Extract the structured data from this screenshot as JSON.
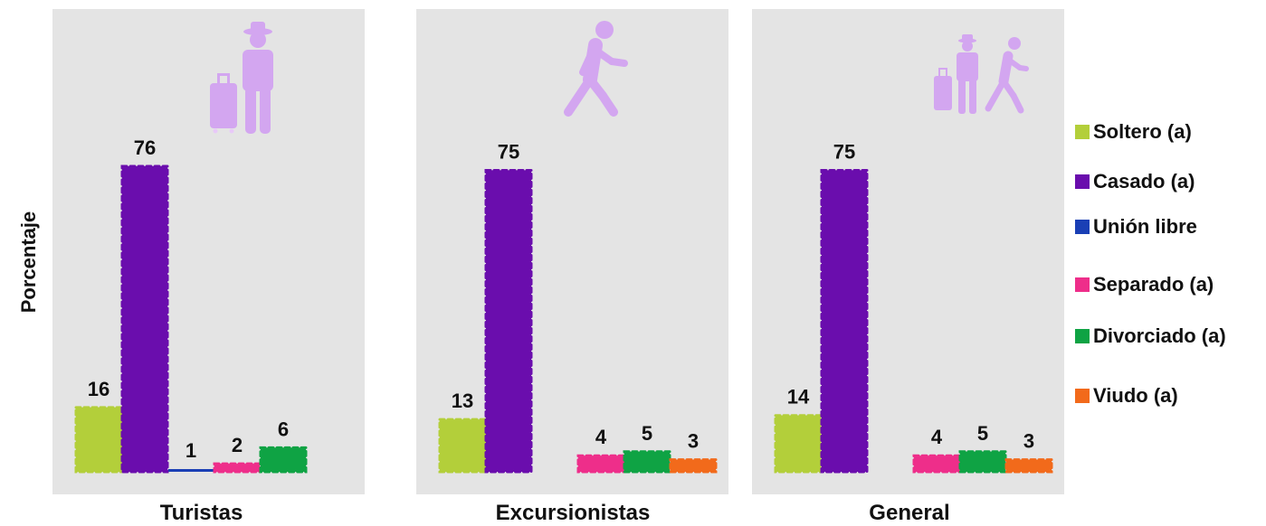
{
  "chart_data": {
    "type": "bar",
    "ylabel": "Porcentaje",
    "ylim": [
      0,
      80
    ],
    "series": [
      {
        "name": "Soltero (a)",
        "color": "#b3cf3a"
      },
      {
        "name": "Casado (a)",
        "color": "#6a0dad"
      },
      {
        "name": "Unión libre",
        "color": "#1a3fb5"
      },
      {
        "name": "Separado (a)",
        "color": "#ee2e8a"
      },
      {
        "name": "Divorciado (a)",
        "color": "#0fa344"
      },
      {
        "name": "Viudo (a)",
        "color": "#f26a1b"
      }
    ],
    "groups": [
      {
        "category": "Turistas",
        "icon": "tourist-luggage-icon",
        "values": [
          16,
          76,
          1,
          2,
          6,
          null
        ],
        "labels": [
          "16",
          "76",
          "1",
          "2",
          "6",
          ""
        ]
      },
      {
        "category": "Excursionistas",
        "icon": "walking-person-icon",
        "values": [
          13,
          75,
          null,
          4,
          5,
          3
        ],
        "labels": [
          "13",
          "75",
          "",
          "4",
          "5",
          "3"
        ]
      },
      {
        "category": "General",
        "icon": "tourist-and-walker-icon",
        "values": [
          14,
          75,
          null,
          4,
          5,
          3
        ],
        "labels": [
          "14",
          "75",
          "",
          "4",
          "5",
          "3"
        ]
      }
    ]
  }
}
